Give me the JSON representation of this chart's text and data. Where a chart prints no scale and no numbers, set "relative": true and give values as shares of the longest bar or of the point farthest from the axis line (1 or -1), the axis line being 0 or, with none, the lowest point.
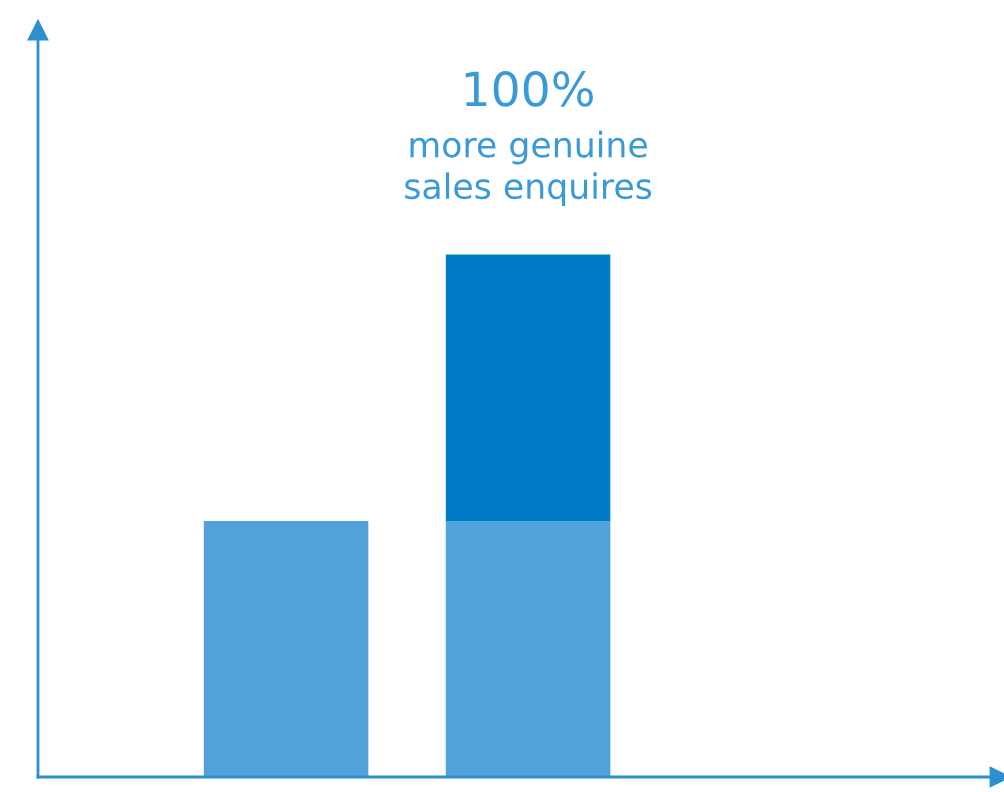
{
  "chart_data": {
    "type": "bar",
    "relative": true,
    "stacked": true,
    "categories": [
      null,
      null
    ],
    "series": [
      {
        "color": "#4fa3d8",
        "values": [
          0.49,
          0.49
        ]
      },
      {
        "color": "#007bc7",
        "values": [
          null,
          0.51
        ]
      }
    ],
    "annotations": [
      "100%",
      "more genuine\nsales enquires"
    ],
    "grid": false,
    "legend": false
  }
}
